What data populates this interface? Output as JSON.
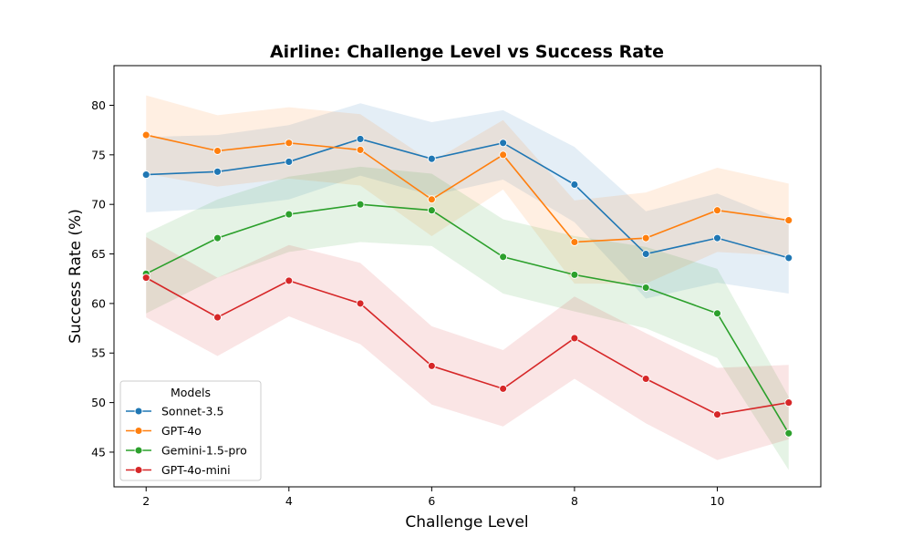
{
  "chart_data": {
    "type": "line",
    "title": "Airline: Challenge Level vs Success Rate",
    "xlabel": "Challenge Level",
    "ylabel": "Success Rate (%)",
    "xlim": [
      1.55,
      11.45
    ],
    "ylim": [
      41.5,
      84.0
    ],
    "xticks": [
      2,
      4,
      6,
      8,
      10
    ],
    "yticks": [
      45,
      50,
      55,
      60,
      65,
      70,
      75,
      80
    ],
    "grid": false,
    "legend": {
      "title": "Models",
      "placement": "lower-left"
    },
    "x": [
      2,
      3,
      4,
      5,
      6,
      7,
      8,
      9,
      10,
      11
    ],
    "series": [
      {
        "name": "Sonnet-3.5",
        "color": "#1f77b4",
        "values": [
          73.0,
          73.3,
          74.3,
          76.6,
          74.6,
          76.2,
          72.0,
          65.0,
          66.6,
          64.6
        ],
        "lower": [
          69.2,
          69.6,
          70.5,
          72.9,
          70.9,
          72.5,
          68.2,
          60.5,
          62.1,
          61.0
        ],
        "upper": [
          76.8,
          77.0,
          78.0,
          80.2,
          78.3,
          79.5,
          75.8,
          69.3,
          71.1,
          68.2
        ]
      },
      {
        "name": "GPT-4o",
        "color": "#ff7f0e",
        "values": [
          77.0,
          75.4,
          76.2,
          75.5,
          70.5,
          75.0,
          66.2,
          66.6,
          69.4,
          68.4
        ],
        "lower": [
          73.1,
          71.8,
          72.6,
          71.9,
          66.8,
          71.5,
          62.0,
          62.0,
          65.2,
          64.8
        ],
        "upper": [
          81.0,
          79.0,
          79.8,
          79.1,
          74.3,
          78.5,
          70.4,
          71.2,
          73.7,
          72.1
        ]
      },
      {
        "name": "Gemini-1.5-pro",
        "color": "#2ca02c",
        "values": [
          63.0,
          66.6,
          69.0,
          70.0,
          69.4,
          64.7,
          62.9,
          61.6,
          59.0,
          46.9
        ],
        "lower": [
          59.0,
          62.6,
          65.2,
          66.2,
          65.8,
          61.0,
          59.2,
          57.5,
          54.5,
          43.2
        ],
        "upper": [
          67.1,
          70.5,
          72.8,
          73.8,
          73.1,
          68.5,
          66.8,
          65.7,
          63.5,
          50.6
        ]
      },
      {
        "name": "GPT-4o-mini",
        "color": "#d62728",
        "values": [
          62.6,
          58.6,
          62.3,
          60.0,
          53.7,
          51.4,
          56.5,
          52.4,
          48.8,
          50.0
        ],
        "lower": [
          58.6,
          54.7,
          58.7,
          55.9,
          49.8,
          47.6,
          52.4,
          47.9,
          44.2,
          46.3
        ],
        "upper": [
          66.7,
          62.6,
          65.9,
          64.1,
          57.7,
          55.3,
          60.7,
          57.0,
          53.5,
          53.8
        ]
      }
    ]
  }
}
